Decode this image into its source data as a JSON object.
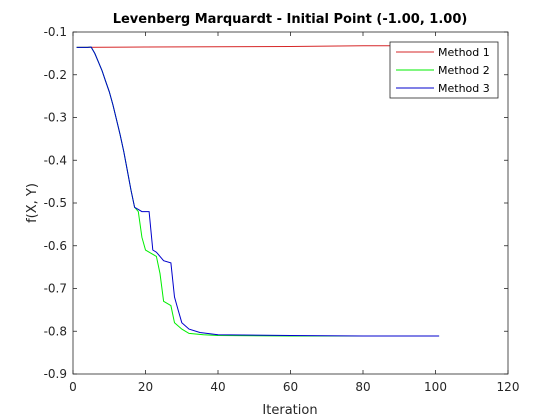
{
  "chart_data": {
    "type": "line",
    "title": "Levenberg Marquardt - Initial Point (-1.00, 1.00)",
    "xlabel": "Iteration",
    "ylabel": "f(X, Y)",
    "xlim": [
      0,
      120
    ],
    "ylim": [
      -0.9,
      -0.1
    ],
    "xticks": [
      0,
      20,
      40,
      60,
      80,
      100,
      120
    ],
    "yticks": [
      -0.1,
      -0.2,
      -0.3,
      -0.4,
      -0.5,
      -0.6,
      -0.7,
      -0.8,
      -0.9
    ],
    "xtick_labels": [
      "0",
      "20",
      "40",
      "60",
      "80",
      "100",
      "120"
    ],
    "ytick_labels": [
      "-0.1",
      "-0.2",
      "-0.3",
      "-0.4",
      "-0.5",
      "-0.6",
      "-0.7",
      "-0.8",
      "-0.9"
    ],
    "grid": false,
    "legend_position": "top-right",
    "series": [
      {
        "name": "Method 1",
        "color": "#d62728",
        "points": [
          [
            1,
            -0.136
          ],
          [
            20,
            -0.135
          ],
          [
            40,
            -0.1345
          ],
          [
            60,
            -0.134
          ],
          [
            70,
            -0.133
          ],
          [
            80,
            -0.132
          ],
          [
            90,
            -0.132
          ],
          [
            101,
            -0.131
          ]
        ]
      },
      {
        "name": "Method 2",
        "color": "#00ee00",
        "points": [
          [
            1,
            -0.136
          ],
          [
            4,
            -0.136
          ],
          [
            5,
            -0.135
          ],
          [
            6,
            -0.15
          ],
          [
            7,
            -0.17
          ],
          [
            8,
            -0.19
          ],
          [
            9,
            -0.215
          ],
          [
            10,
            -0.24
          ],
          [
            11,
            -0.27
          ],
          [
            12,
            -0.305
          ],
          [
            13,
            -0.34
          ],
          [
            14,
            -0.38
          ],
          [
            15,
            -0.425
          ],
          [
            16,
            -0.47
          ],
          [
            17,
            -0.51
          ],
          [
            18,
            -0.52
          ],
          [
            19,
            -0.58
          ],
          [
            20,
            -0.61
          ],
          [
            22,
            -0.62
          ],
          [
            23,
            -0.625
          ],
          [
            24,
            -0.665
          ],
          [
            25,
            -0.73
          ],
          [
            27,
            -0.74
          ],
          [
            28,
            -0.78
          ],
          [
            30,
            -0.795
          ],
          [
            32,
            -0.805
          ],
          [
            36,
            -0.808
          ],
          [
            40,
            -0.81
          ],
          [
            60,
            -0.811
          ],
          [
            80,
            -0.811
          ],
          [
            101,
            -0.811
          ]
        ]
      },
      {
        "name": "Method 3",
        "color": "#0000cc",
        "points": [
          [
            1,
            -0.136
          ],
          [
            4,
            -0.136
          ],
          [
            5,
            -0.135
          ],
          [
            6,
            -0.15
          ],
          [
            7,
            -0.17
          ],
          [
            8,
            -0.19
          ],
          [
            9,
            -0.215
          ],
          [
            10,
            -0.24
          ],
          [
            11,
            -0.27
          ],
          [
            12,
            -0.305
          ],
          [
            13,
            -0.34
          ],
          [
            14,
            -0.38
          ],
          [
            15,
            -0.425
          ],
          [
            16,
            -0.47
          ],
          [
            17,
            -0.51
          ],
          [
            18,
            -0.515
          ],
          [
            19,
            -0.52
          ],
          [
            21,
            -0.52
          ],
          [
            22,
            -0.61
          ],
          [
            23,
            -0.615
          ],
          [
            24,
            -0.625
          ],
          [
            25,
            -0.635
          ],
          [
            27,
            -0.64
          ],
          [
            28,
            -0.72
          ],
          [
            29,
            -0.75
          ],
          [
            30,
            -0.78
          ],
          [
            32,
            -0.795
          ],
          [
            35,
            -0.803
          ],
          [
            40,
            -0.808
          ],
          [
            60,
            -0.81
          ],
          [
            80,
            -0.811
          ],
          [
            101,
            -0.811
          ]
        ]
      }
    ]
  }
}
